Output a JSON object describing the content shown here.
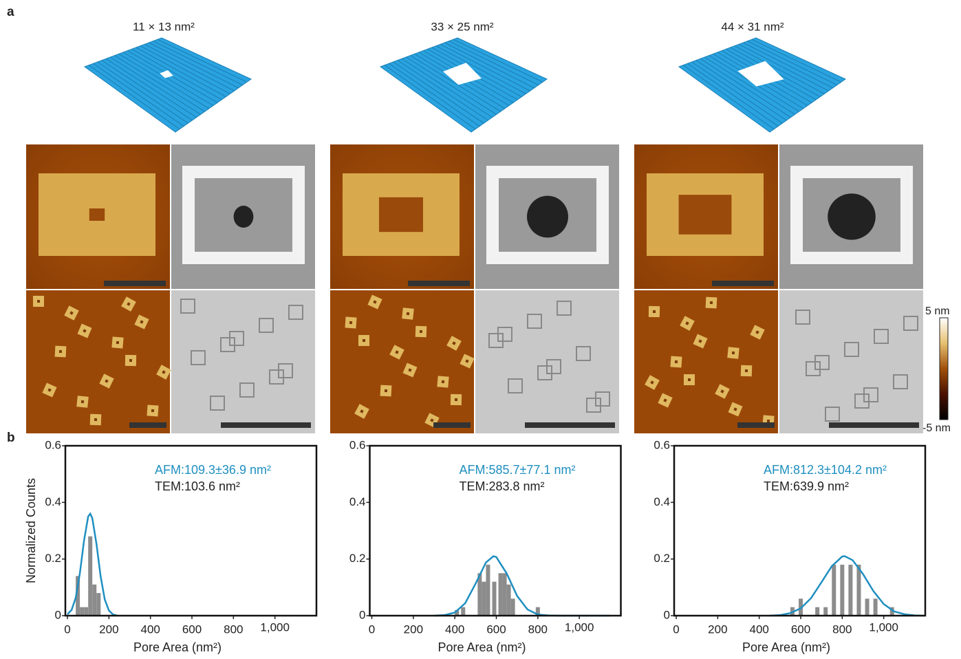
{
  "panel_labels": [
    "a",
    "b"
  ],
  "pore_sizes": [
    "11 × 13 nm²",
    "33 × 25 nm²",
    "44 × 31 nm²"
  ],
  "colorbar": {
    "max": "5 nm",
    "min": "-5 nm"
  },
  "chart_data": [
    {
      "type": "bar",
      "ylabel": "Normalized Counts",
      "xlabel": "Pore Area (nm²)",
      "x": [
        50,
        70,
        90,
        110,
        130,
        150
      ],
      "values": [
        0.14,
        0.03,
        0.03,
        0.28,
        0.11,
        0.08
      ],
      "bar_color": "#8c8c8c",
      "fit_x": [
        0,
        20,
        40,
        60,
        80,
        100,
        110,
        120,
        140,
        160,
        180,
        200,
        220,
        240
      ],
      "fit_values": [
        0.005,
        0.02,
        0.063,
        0.15,
        0.265,
        0.35,
        0.36,
        0.344,
        0.253,
        0.139,
        0.057,
        0.018,
        0.004,
        0
      ],
      "fit_color": "#1f8fc0",
      "xlim": [
        -10,
        1200
      ],
      "ylim": [
        0,
        0.6
      ],
      "xticks": [
        0,
        200,
        400,
        600,
        800,
        {
          "value": 1000,
          "label": "1,000"
        }
      ],
      "yticks": [
        0,
        0.2,
        0.4,
        0.6
      ],
      "annotations": [
        {
          "text": "AFM:109.3±36.9 nm²",
          "color": "#1f8fc0"
        },
        {
          "text": "TEM:103.6 nm²",
          "color": "#222222"
        }
      ]
    },
    {
      "type": "bar",
      "xlabel": "Pore Area (nm²)",
      "x": [
        410,
        440,
        520,
        540,
        560,
        590,
        620,
        640,
        660,
        680,
        800
      ],
      "values": [
        0.02,
        0.03,
        0.15,
        0.12,
        0.18,
        0.12,
        0.15,
        0.15,
        0.11,
        0.06,
        0.03
      ],
      "bar_color": "#8c8c8c",
      "fit_x": [
        300,
        350,
        400,
        450,
        500,
        550,
        586,
        600,
        650,
        700,
        750,
        800,
        850,
        900,
        1150
      ],
      "fit_values": [
        0,
        0.002,
        0.011,
        0.044,
        0.113,
        0.188,
        0.21,
        0.207,
        0.149,
        0.07,
        0.022,
        0.004,
        0.001,
        0,
        0
      ],
      "fit_color": "#1f8fc0",
      "xlim": [
        -10,
        1200
      ],
      "ylim": [
        0,
        0.6
      ],
      "xticks": [
        0,
        200,
        400,
        600,
        800,
        {
          "value": 1000,
          "label": "1,000"
        }
      ],
      "yticks": [
        0,
        0.2,
        0.4,
        0.6
      ],
      "annotations": [
        {
          "text": "AFM:585.7±77.1 nm²",
          "color": "#1f8fc0"
        },
        {
          "text": "TEM:283.8 nm²",
          "color": "#222222"
        }
      ]
    },
    {
      "type": "bar",
      "xlabel": "Pore Area (nm²)",
      "x": [
        560,
        600,
        680,
        720,
        760,
        800,
        840,
        880,
        920,
        960,
        1040
      ],
      "values": [
        0.03,
        0.06,
        0.03,
        0.03,
        0.18,
        0.18,
        0.18,
        0.18,
        0.06,
        0.06,
        0.03
      ],
      "bar_color": "#8c8c8c",
      "fit_x": [
        450,
        500,
        550,
        600,
        650,
        700,
        750,
        800,
        812,
        850,
        900,
        950,
        1000,
        1050,
        1100,
        1150,
        1190
      ],
      "fit_values": [
        0,
        0.002,
        0.009,
        0.026,
        0.062,
        0.118,
        0.175,
        0.209,
        0.21,
        0.196,
        0.147,
        0.087,
        0.041,
        0.015,
        0.005,
        0.001,
        0
      ],
      "fit_color": "#1f8fc0",
      "xlim": [
        -10,
        1200
      ],
      "ylim": [
        0,
        0.6
      ],
      "xticks": [
        0,
        200,
        400,
        600,
        800,
        {
          "value": 1000,
          "label": "1,000"
        }
      ],
      "yticks": [
        0,
        0.2,
        0.4,
        0.6
      ],
      "annotations": [
        {
          "text": "AFM:812.3±104.2 nm²",
          "color": "#1f8fc0"
        },
        {
          "text": "TEM:639.9 nm²",
          "color": "#222222"
        }
      ]
    }
  ]
}
